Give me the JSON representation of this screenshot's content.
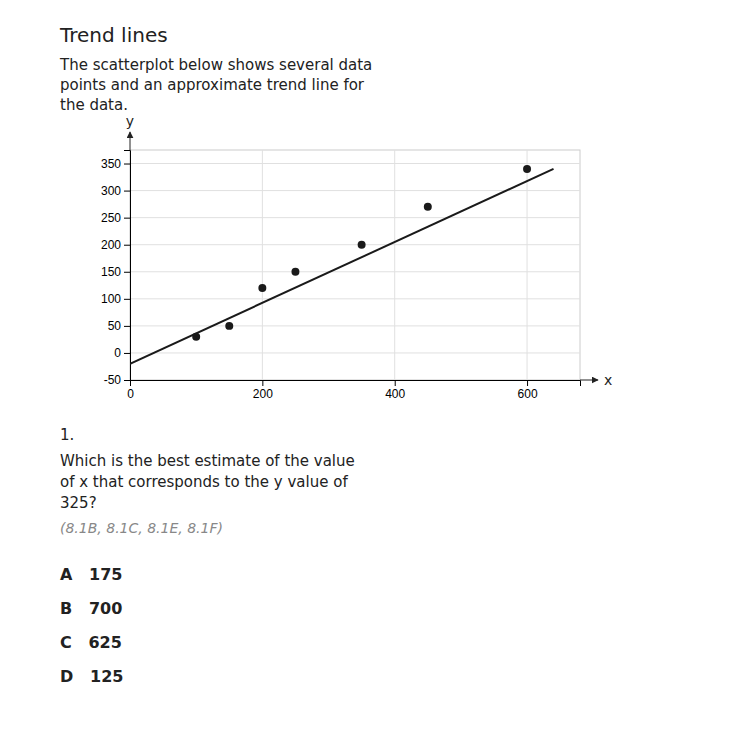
{
  "chart_data": {
    "type": "scatter",
    "title": "Trend lines",
    "subtitle": "The scatterplot below shows several data\npoints and an approximate trend line for\nthe data.",
    "x_label": "x",
    "y_label": "y",
    "series": [
      {
        "type": "scatter",
        "x": [
          100,
          150,
          200,
          250,
          350,
          450,
          600
        ],
        "values": [
          30,
          50,
          120,
          150,
          200,
          270,
          340
        ],
        "color": "#1a1a1a",
        "marker": "circle"
      },
      {
        "type": "line",
        "x": [
          0,
          640
        ],
        "values": [
          -20,
          340
        ],
        "color": "#1a1a1a",
        "line_style": "solid"
      }
    ],
    "xlim": [
      0,
      680
    ],
    "ylim": [
      -50,
      375
    ],
    "xticks": [
      0,
      200,
      400,
      600
    ],
    "yticks": [
      -50,
      0,
      50,
      100,
      150,
      200,
      250,
      300,
      350
    ],
    "grid": true,
    "question_number": "1.",
    "question_text": "Which is the best estimate of the value\nof x that corresponds to the y value of\n325?",
    "question_codes": "(8.1B, 8.1C, 8.1E, 8.1F)",
    "choices": [
      "A   175",
      "B   700",
      "C   625",
      "D   125"
    ]
  }
}
